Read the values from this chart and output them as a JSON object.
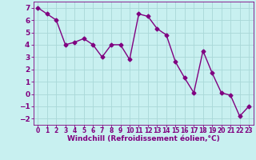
{
  "x": [
    0,
    1,
    2,
    3,
    4,
    5,
    6,
    7,
    8,
    9,
    10,
    11,
    12,
    13,
    14,
    15,
    16,
    17,
    18,
    19,
    20,
    21,
    22,
    23
  ],
  "y": [
    7.0,
    6.5,
    6.0,
    4.0,
    4.2,
    4.5,
    4.0,
    3.0,
    4.0,
    4.0,
    2.8,
    6.5,
    6.3,
    5.3,
    4.8,
    2.6,
    1.3,
    0.1,
    3.5,
    1.7,
    0.1,
    -0.1,
    -1.8,
    -1.0
  ],
  "line_color": "#800080",
  "marker": "D",
  "marker_size": 2.5,
  "line_width": 1.0,
  "bg_color": "#c8f0f0",
  "grid_color": "#a8d8d8",
  "xlabel": "Windchill (Refroidissement éolien,°C)",
  "xlabel_fontsize": 6.5,
  "ytick_fontsize": 6.5,
  "xtick_fontsize": 5.5,
  "ylim": [
    -2.5,
    7.5
  ],
  "xlim": [
    -0.5,
    23.5
  ],
  "yticks": [
    -2,
    -1,
    0,
    1,
    2,
    3,
    4,
    5,
    6,
    7
  ],
  "xticks": [
    0,
    1,
    2,
    3,
    4,
    5,
    6,
    7,
    8,
    9,
    10,
    11,
    12,
    13,
    14,
    15,
    16,
    17,
    18,
    19,
    20,
    21,
    22,
    23
  ]
}
